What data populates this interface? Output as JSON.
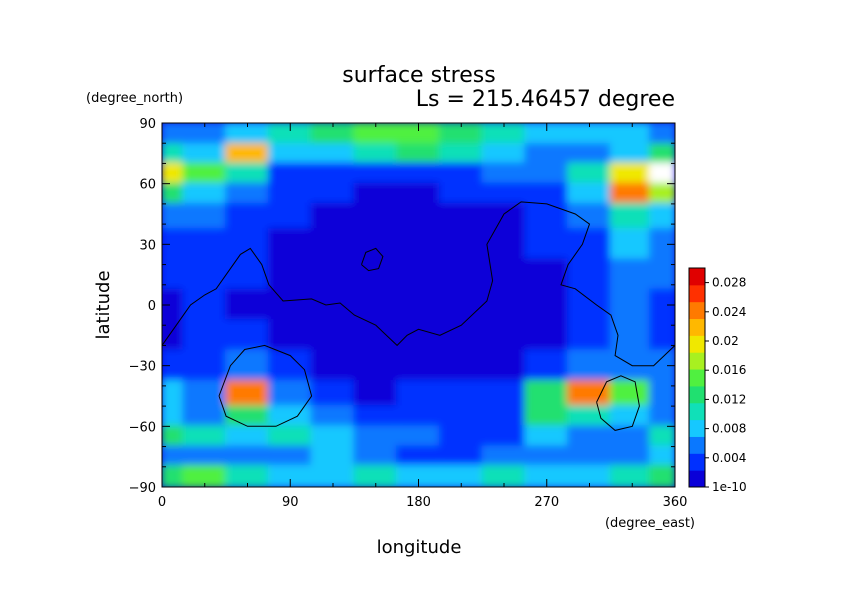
{
  "chart_data": {
    "type": "heatmap",
    "title": "surface stress",
    "subtitle": "Ls = 215.46457 degree",
    "xlabel": "longitude",
    "ylabel": "latitude",
    "x_unit": "(degree_east)",
    "y_unit": "(degree_north)",
    "xlim": [
      0,
      360
    ],
    "ylim": [
      -90,
      90
    ],
    "x_ticks": [
      "0",
      "90",
      "180",
      "270",
      "360"
    ],
    "y_ticks": [
      "90",
      "60",
      "30",
      "0",
      "−30",
      "−60",
      "−90"
    ],
    "colorbar": {
      "min": 1e-10,
      "max": 0.03,
      "ticks": [
        "1e-10",
        "0.004",
        "0.008",
        "0.012",
        "0.016",
        "0.02",
        "0.024",
        "0.028"
      ],
      "tick_values": [
        0,
        0.004,
        0.008,
        0.012,
        0.016,
        0.02,
        0.024,
        0.028
      ],
      "colors": [
        "#0a00d8",
        "#0030ff",
        "#0a78ff",
        "#16c8ff",
        "#10e0b8",
        "#20e070",
        "#50f040",
        "#a8f020",
        "#f0e800",
        "#ffb800",
        "#ff7a00",
        "#ff3000",
        "#e00000"
      ]
    },
    "lat_rows": [
      84,
      75,
      65,
      55,
      45,
      30,
      15,
      0,
      -15,
      -30,
      -45,
      -55,
      -65,
      -75,
      -84
    ],
    "lon_cols": [
      0,
      30,
      60,
      90,
      120,
      150,
      180,
      210,
      240,
      270,
      300,
      330,
      355
    ],
    "values": [
      [
        0.006,
        0.006,
        0.008,
        0.01,
        0.012,
        0.016,
        0.014,
        0.012,
        0.01,
        0.008,
        0.008,
        0.007,
        0.006
      ],
      [
        0.01,
        0.008,
        0.022,
        0.008,
        0.008,
        0.01,
        0.012,
        0.01,
        0.008,
        0.006,
        0.006,
        0.008,
        0.012
      ],
      [
        0.02,
        0.014,
        0.01,
        0.004,
        0.003,
        0.004,
        0.004,
        0.004,
        0.006,
        0.006,
        0.01,
        0.02,
        0.03
      ],
      [
        0.012,
        0.008,
        0.006,
        0.004,
        0.003,
        0.002,
        0.002,
        0.003,
        0.004,
        0.004,
        0.008,
        0.024,
        0.018
      ],
      [
        0.006,
        0.005,
        0.004,
        0.003,
        0.002,
        0.002,
        0.002,
        0.002,
        0.002,
        0.003,
        0.006,
        0.01,
        0.008
      ],
      [
        0.004,
        0.004,
        0.003,
        0.002,
        0.002,
        0.002,
        0.001,
        0.001,
        0.002,
        0.003,
        0.004,
        0.008,
        0.006
      ],
      [
        0.003,
        0.003,
        0.003,
        0.002,
        0.002,
        0.001,
        0.001,
        0.001,
        0.001,
        0.002,
        0.004,
        0.006,
        0.005
      ],
      [
        0.002,
        0.003,
        0.002,
        0.002,
        0.001,
        0.001,
        0.001,
        0.001,
        0.001,
        0.002,
        0.003,
        0.006,
        0.004
      ],
      [
        0.002,
        0.003,
        0.003,
        0.002,
        0.002,
        0.001,
        0.001,
        0.001,
        0.002,
        0.002,
        0.004,
        0.005,
        0.004
      ],
      [
        0.004,
        0.004,
        0.006,
        0.003,
        0.002,
        0.002,
        0.002,
        0.002,
        0.002,
        0.003,
        0.006,
        0.006,
        0.005
      ],
      [
        0.007,
        0.006,
        0.024,
        0.006,
        0.003,
        0.002,
        0.003,
        0.003,
        0.004,
        0.012,
        0.024,
        0.016,
        0.006
      ],
      [
        0.008,
        0.006,
        0.012,
        0.008,
        0.006,
        0.004,
        0.004,
        0.004,
        0.004,
        0.012,
        0.01,
        0.008,
        0.006
      ],
      [
        0.012,
        0.01,
        0.008,
        0.01,
        0.008,
        0.006,
        0.006,
        0.004,
        0.004,
        0.008,
        0.006,
        0.006,
        0.01
      ],
      [
        0.006,
        0.006,
        0.006,
        0.006,
        0.008,
        0.006,
        0.004,
        0.004,
        0.006,
        0.006,
        0.006,
        0.006,
        0.008
      ],
      [
        0.012,
        0.014,
        0.01,
        0.008,
        0.008,
        0.01,
        0.008,
        0.008,
        0.01,
        0.008,
        0.008,
        0.01,
        0.012
      ]
    ],
    "contour_lines": [
      [
        [
          0,
          -20
        ],
        [
          10,
          -10
        ],
        [
          20,
          0
        ],
        [
          30,
          5
        ],
        [
          38,
          8
        ],
        [
          45,
          15
        ],
        [
          55,
          25
        ],
        [
          62,
          28
        ],
        [
          70,
          20
        ],
        [
          75,
          10
        ],
        [
          85,
          2
        ],
        [
          105,
          3
        ],
        [
          115,
          0
        ],
        [
          125,
          1
        ],
        [
          135,
          -5
        ],
        [
          150,
          -10
        ],
        [
          165,
          -20
        ],
        [
          172,
          -15
        ],
        [
          180,
          -12
        ],
        [
          195,
          -15
        ],
        [
          210,
          -10
        ],
        [
          228,
          2
        ],
        [
          232,
          12
        ],
        [
          228,
          30
        ],
        [
          240,
          45
        ],
        [
          252,
          51
        ],
        [
          270,
          50
        ],
        [
          290,
          45
        ],
        [
          300,
          40
        ],
        [
          295,
          30
        ],
        [
          285,
          20
        ],
        [
          280,
          10
        ],
        [
          290,
          8
        ],
        [
          305,
          0
        ],
        [
          315,
          -5
        ],
        [
          320,
          -15
        ],
        [
          318,
          -25
        ],
        [
          330,
          -30
        ],
        [
          345,
          -30
        ],
        [
          360,
          -20
        ]
      ],
      [
        [
          140,
          20
        ],
        [
          143,
          26
        ],
        [
          150,
          28
        ],
        [
          155,
          24
        ],
        [
          152,
          18
        ],
        [
          145,
          17
        ],
        [
          140,
          20
        ]
      ],
      [
        [
          40,
          -45
        ],
        [
          48,
          -30
        ],
        [
          58,
          -22
        ],
        [
          72,
          -20
        ],
        [
          90,
          -25
        ],
        [
          100,
          -32
        ],
        [
          105,
          -45
        ],
        [
          95,
          -55
        ],
        [
          80,
          -60
        ],
        [
          60,
          -60
        ],
        [
          45,
          -55
        ],
        [
          40,
          -45
        ]
      ],
      [
        [
          305,
          -48
        ],
        [
          312,
          -38
        ],
        [
          322,
          -35
        ],
        [
          332,
          -38
        ],
        [
          335,
          -50
        ],
        [
          330,
          -60
        ],
        [
          318,
          -62
        ],
        [
          308,
          -56
        ],
        [
          305,
          -48
        ]
      ]
    ]
  }
}
